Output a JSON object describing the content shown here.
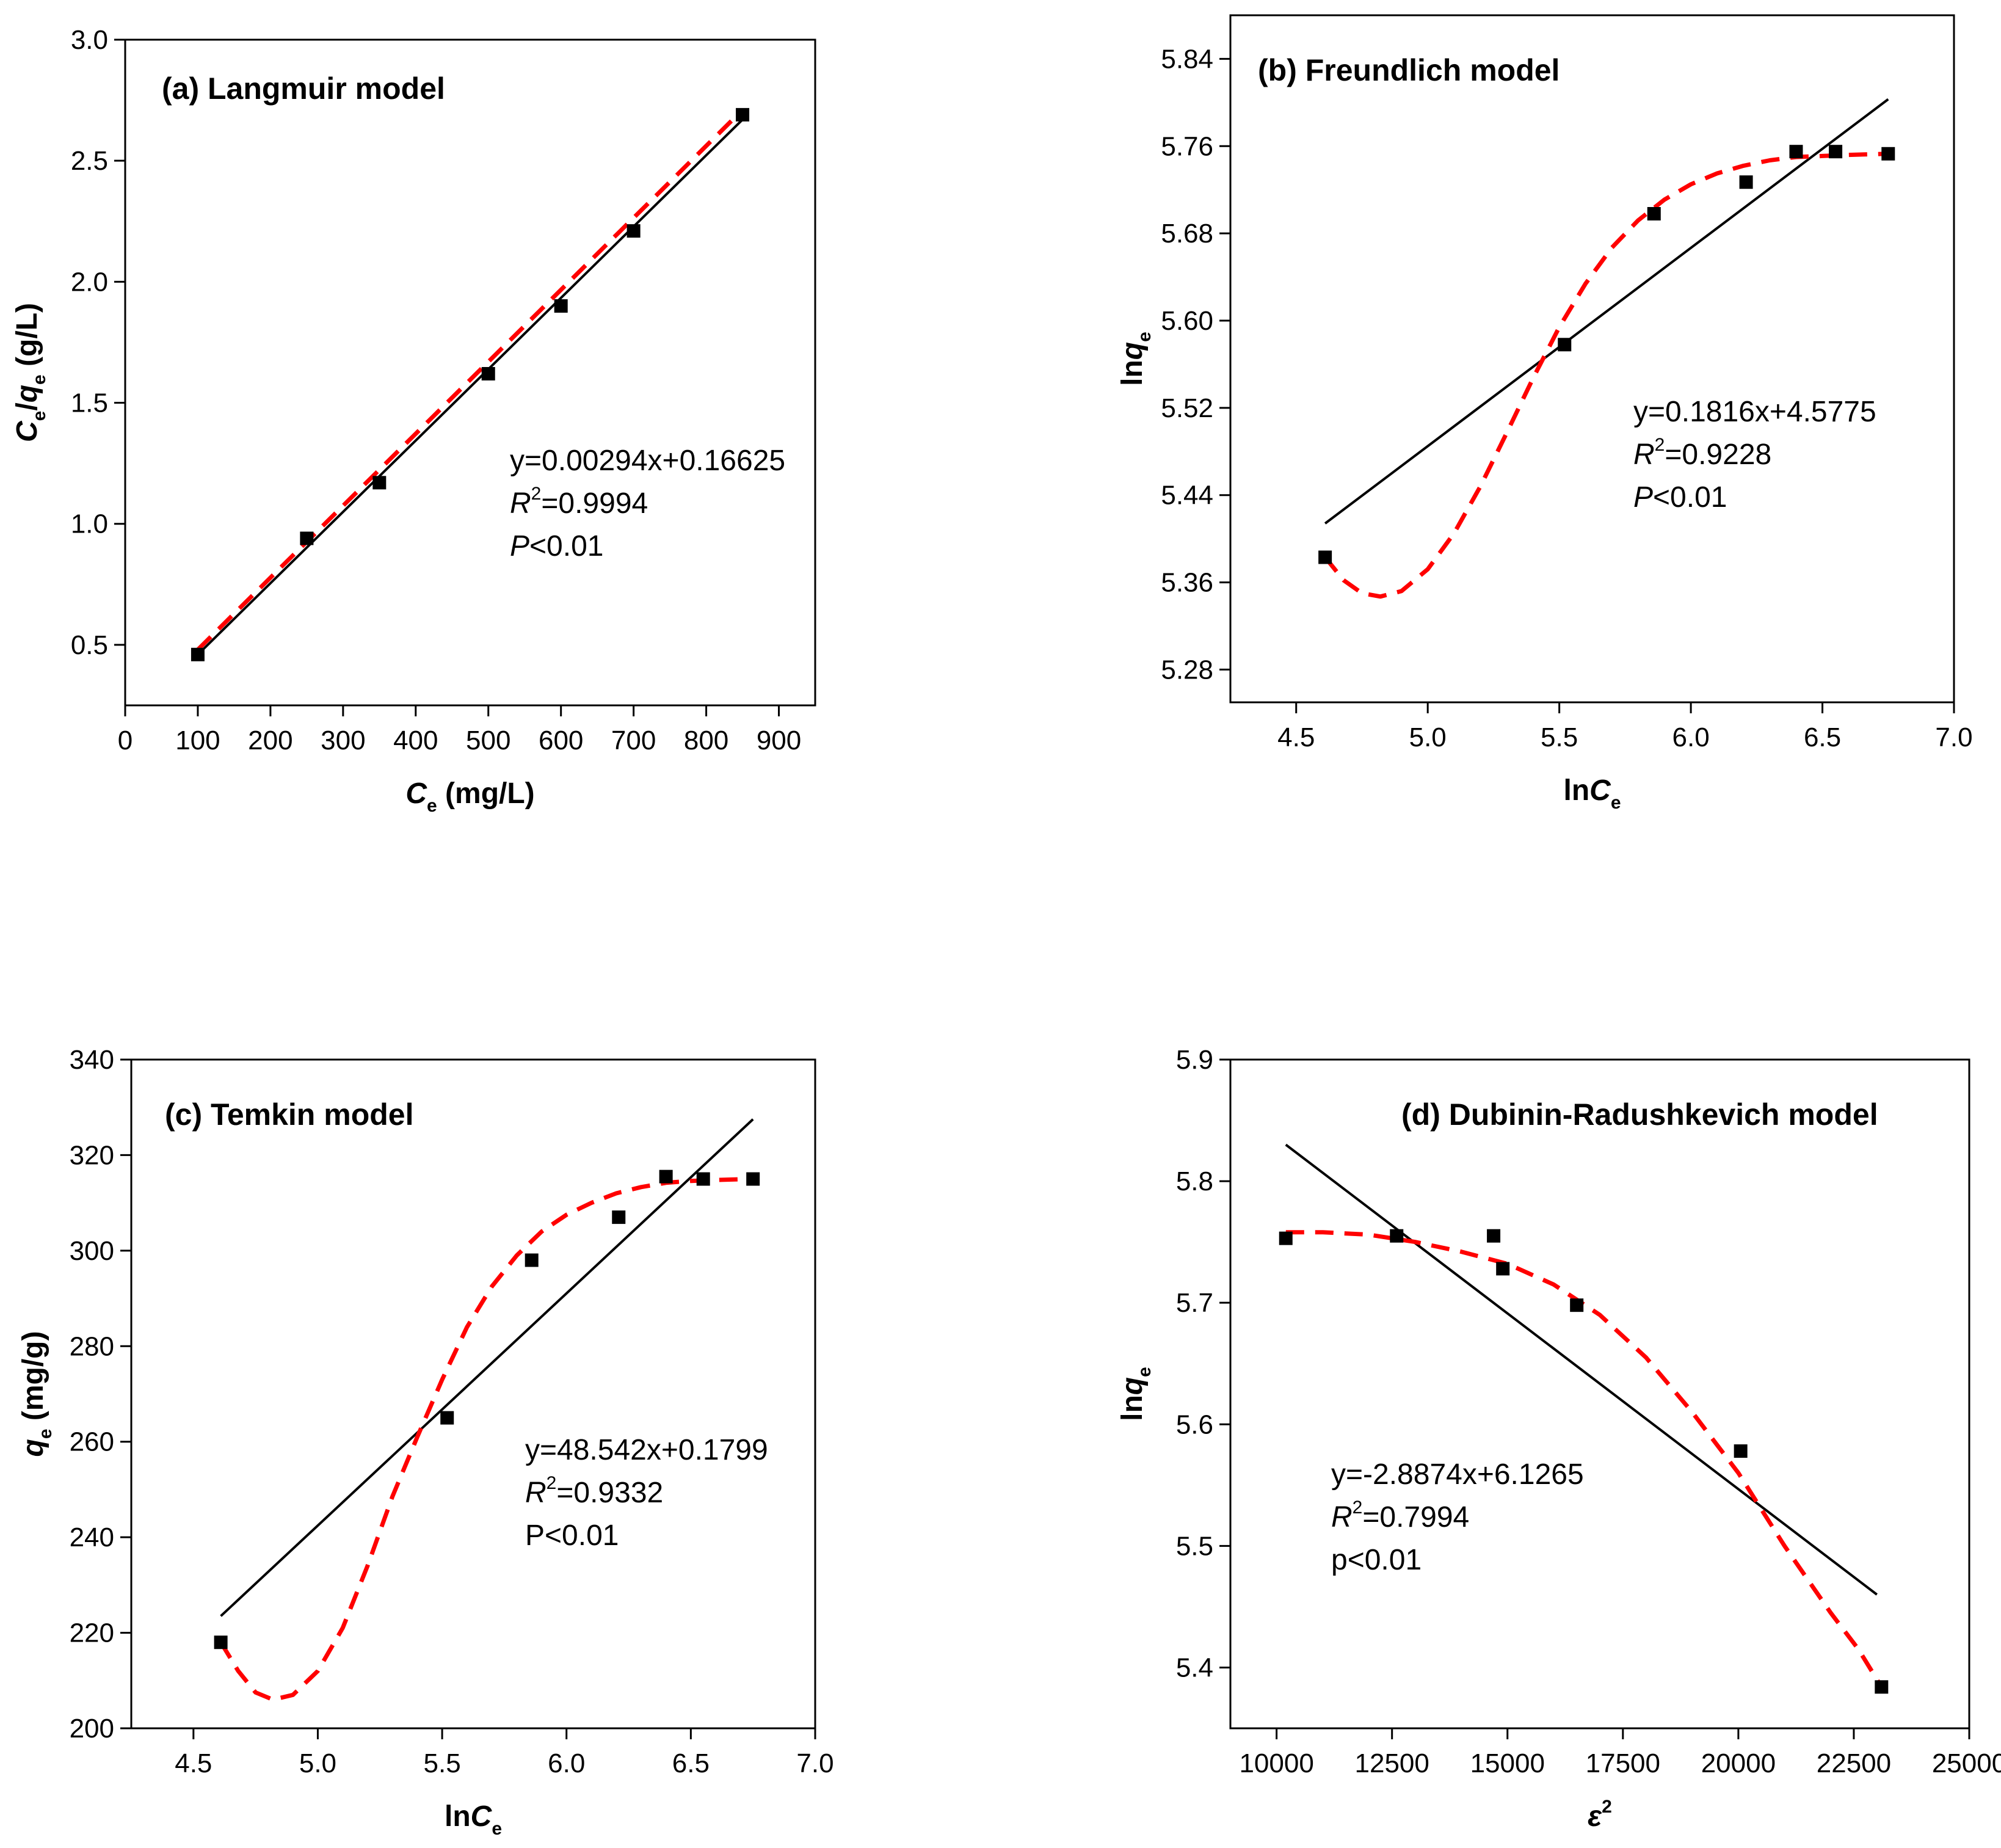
{
  "colors": {
    "points": "#000000",
    "fit_line": "#000000",
    "curve": "#ff0000",
    "axes": "#000000"
  },
  "chart_data": [
    {
      "id": "a",
      "type": "scatter",
      "title": "(a) Langmuir model",
      "xlabel": {
        "main": "C",
        "sub": "e",
        "rest": " (mg/L)"
      },
      "ylabel": {
        "main1": "C",
        "sub1": "e",
        "slash": "/",
        "main2": "q",
        "sub2": "e",
        "rest": " (g/L)"
      },
      "xlim": [
        0,
        950
      ],
      "ylim": [
        0.25,
        3.0
      ],
      "xticks": [
        0,
        100,
        200,
        300,
        400,
        500,
        600,
        700,
        800,
        900
      ],
      "xtick_labels": [
        "0",
        "100",
        "200",
        "300",
        "400",
        "500",
        "600",
        "700",
        "800",
        "900"
      ],
      "yticks": [
        0.5,
        1.0,
        1.5,
        2.0,
        2.5,
        3.0
      ],
      "ytick_labels": [
        "0.5",
        "1.0",
        "1.5",
        "2.0",
        "2.5",
        "3.0"
      ],
      "x": [
        100,
        250,
        350,
        500,
        600,
        700,
        850
      ],
      "y": [
        0.46,
        0.94,
        1.17,
        1.62,
        1.9,
        2.21,
        2.69
      ],
      "fit_line": {
        "x": [
          100,
          850
        ],
        "y": [
          0.46,
          2.67
        ]
      },
      "curve": {
        "x": [
          100,
          850
        ],
        "y": [
          0.48,
          2.71
        ]
      },
      "equation": {
        "line1": "y=0.00294x+0.16625",
        "r2_sym": "R",
        "r2_sup": "2",
        "r2_val": "=0.9994",
        "p_sym": "P",
        "p_val": "<0.01"
      }
    },
    {
      "id": "b",
      "type": "scatter",
      "title": "(b) Freundlich model",
      "xlabel": {
        "pre": "ln",
        "main": "C",
        "sub": "e",
        "rest": ""
      },
      "ylabel": {
        "pre": "ln",
        "main": "q",
        "sub": "e",
        "rest": ""
      },
      "xlim": [
        4.25,
        7.0
      ],
      "ylim": [
        5.25,
        5.88
      ],
      "xticks": [
        4.5,
        5.0,
        5.5,
        6.0,
        6.5,
        7.0
      ],
      "xtick_labels": [
        "4.5",
        "5.0",
        "5.5",
        "6.0",
        "6.5",
        "7.0"
      ],
      "yticks": [
        5.28,
        5.36,
        5.44,
        5.52,
        5.6,
        5.68,
        5.76,
        5.84
      ],
      "ytick_labels": [
        "5.28",
        "5.36",
        "5.44",
        "5.52",
        "5.60",
        "5.68",
        "5.76",
        "5.84"
      ],
      "x": [
        4.61,
        5.52,
        5.86,
        6.21,
        6.4,
        6.55,
        6.75
      ],
      "y": [
        5.383,
        5.578,
        5.698,
        5.727,
        5.755,
        5.755,
        5.753
      ],
      "fit_line": {
        "x": [
          4.61,
          6.75
        ],
        "y": [
          5.414,
          5.803
        ]
      },
      "curve": {
        "x": [
          4.61,
          4.68,
          4.75,
          4.82,
          4.9,
          5.0,
          5.1,
          5.2,
          5.3,
          5.4,
          5.5,
          5.6,
          5.7,
          5.8,
          5.9,
          6.0,
          6.1,
          6.2,
          6.3,
          6.4,
          6.5,
          6.6,
          6.75
        ],
        "y": [
          5.383,
          5.362,
          5.35,
          5.347,
          5.352,
          5.372,
          5.405,
          5.448,
          5.497,
          5.547,
          5.594,
          5.634,
          5.667,
          5.692,
          5.711,
          5.725,
          5.735,
          5.742,
          5.747,
          5.75,
          5.751,
          5.752,
          5.753
        ]
      },
      "equation": {
        "line1": "y=0.1816x+4.5775",
        "r2_sym": "R",
        "r2_sup": "2",
        "r2_val": "=0.9228",
        "p_sym": "P",
        "p_val": "<0.01"
      }
    },
    {
      "id": "c",
      "type": "scatter",
      "title": "(c) Temkin model",
      "xlabel": {
        "pre": "ln",
        "main": "C",
        "sub": "e",
        "rest": ""
      },
      "ylabel": {
        "pre": "",
        "main": "q",
        "sub": "e",
        "rest": " (mg/g)"
      },
      "xlim": [
        4.25,
        7.0
      ],
      "ylim": [
        200,
        340
      ],
      "xticks": [
        4.5,
        5.0,
        5.5,
        6.0,
        6.5,
        7.0
      ],
      "xtick_labels": [
        "4.5",
        "5.0",
        "5.5",
        "6.0",
        "6.5",
        "7.0"
      ],
      "yticks": [
        200,
        220,
        240,
        260,
        280,
        300,
        320,
        340
      ],
      "ytick_labels": [
        "200",
        "220",
        "240",
        "260",
        "280",
        "300",
        "320",
        "340"
      ],
      "x": [
        4.61,
        5.52,
        5.86,
        6.21,
        6.4,
        6.55,
        6.75
      ],
      "y": [
        218,
        265,
        298,
        307,
        315.5,
        315,
        315
      ],
      "fit_line": {
        "x": [
          4.61,
          6.75
        ],
        "y": [
          223.5,
          327.5
        ]
      },
      "curve": {
        "x": [
          4.61,
          4.68,
          4.75,
          4.82,
          4.9,
          5.0,
          5.1,
          5.2,
          5.3,
          5.4,
          5.5,
          5.6,
          5.7,
          5.8,
          5.9,
          6.0,
          6.1,
          6.2,
          6.3,
          6.4,
          6.5,
          6.6,
          6.75
        ],
        "y": [
          218,
          212,
          207.5,
          206,
          207,
          212,
          221,
          234,
          248.5,
          261,
          273,
          284,
          292.5,
          299,
          304,
          307.5,
          310,
          312,
          313.3,
          314.2,
          314.6,
          314.8,
          315
        ]
      },
      "equation": {
        "line1": "y=48.542x+0.1799",
        "r2_sym": "R",
        "r2_sup": "2",
        "r2_val": "=0.9332",
        "p_sym": "",
        "p_val": "P<0.01"
      }
    },
    {
      "id": "d",
      "type": "scatter",
      "title": "(d) Dubinin-Radushkevich model",
      "xlabel": {
        "pre": "",
        "main": "ε",
        "sup": "2",
        "rest": ""
      },
      "ylabel": {
        "pre": "ln",
        "main": "q",
        "sub": "e",
        "rest": ""
      },
      "xlim": [
        9000,
        25000
      ],
      "ylim": [
        5.35,
        5.9
      ],
      "xticks": [
        10000,
        12500,
        15000,
        17500,
        20000,
        22500,
        25000
      ],
      "xtick_labels": [
        "10000",
        "12500",
        "15000",
        "17500",
        "20000",
        "22500",
        "25000"
      ],
      "yticks": [
        5.4,
        5.5,
        5.6,
        5.7,
        5.8,
        5.9
      ],
      "ytick_labels": [
        "5.4",
        "5.5",
        "5.6",
        "5.7",
        "5.8",
        "5.9"
      ],
      "x": [
        10200,
        12600,
        14700,
        14900,
        16500,
        20050,
        23100
      ],
      "y": [
        5.753,
        5.755,
        5.755,
        5.728,
        5.698,
        5.578,
        5.384
      ],
      "fit_line": {
        "x": [
          10200,
          23000
        ],
        "y": [
          5.83,
          5.46
        ]
      },
      "curve": {
        "x": [
          10200,
          11000,
          12000,
          13000,
          14000,
          15000,
          16000,
          17000,
          18000,
          19000,
          20000,
          21000,
          22000,
          22600,
          23100
        ],
        "y": [
          5.758,
          5.758,
          5.756,
          5.75,
          5.742,
          5.732,
          5.715,
          5.69,
          5.655,
          5.61,
          5.56,
          5.5,
          5.445,
          5.415,
          5.384
        ]
      },
      "equation": {
        "line1": "y=-2.8874x+6.1265",
        "r2_sym": "R",
        "r2_sup": "2",
        "r2_val": "=0.7994",
        "p_sym": "",
        "p_val": "p<0.01"
      }
    }
  ]
}
